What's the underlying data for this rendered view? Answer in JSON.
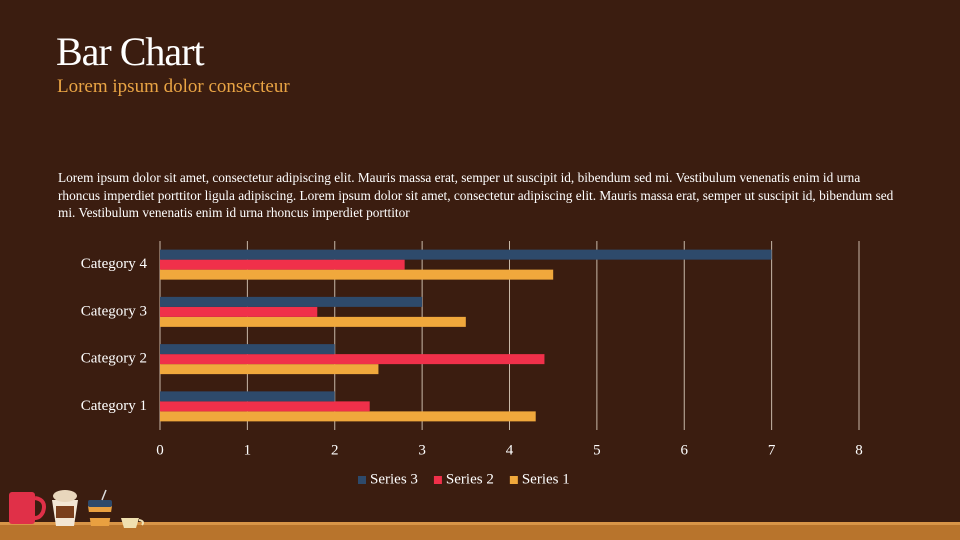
{
  "title": "Bar Chart",
  "subtitle": "Lorem ipsum dolor consecteur",
  "body": "Lorem ipsum dolor sit amet, consectetur adipiscing elit. Mauris massa erat, semper ut suscipit id, bibendum sed mi. Vestibulum venenatis enim id urna rhoncus imperdiet porttitor ligula adipiscing. Lorem ipsum dolor sit amet, consectetur adipiscing elit. Mauris massa erat, semper ut suscipit id, bibendum sed mi. Vestibulum venenatis enim id urna rhoncus imperdiet porttitor",
  "chart_data": {
    "type": "hbar",
    "categories": [
      "Category 1",
      "Category 2",
      "Category 3",
      "Category 4"
    ],
    "series": [
      {
        "name": "Series 1",
        "color": "#f0a83c",
        "values": [
          4.3,
          2.5,
          3.5,
          4.5
        ]
      },
      {
        "name": "Series 2",
        "color": "#f0304a",
        "values": [
          2.4,
          4.4,
          1.8,
          2.8
        ]
      },
      {
        "name": "Series 3",
        "color": "#2e4a6b",
        "values": [
          2,
          2,
          3,
          7
        ]
      }
    ],
    "xlim": [
      0,
      8
    ],
    "xticks": [
      0,
      1,
      2,
      3,
      4,
      5,
      6,
      7,
      8
    ],
    "grid": true,
    "legend": "bottom"
  }
}
